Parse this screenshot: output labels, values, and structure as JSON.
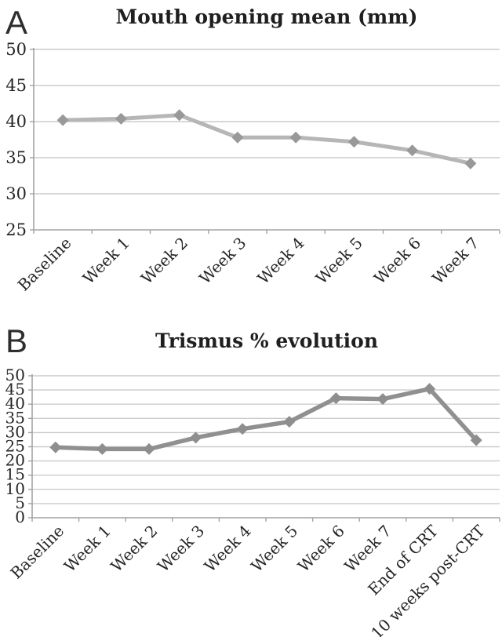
{
  "figure": {
    "background": "#ffffff",
    "text_color": "#262626",
    "gridline_color": "#cbcbcb",
    "axis_color": "#a3a3a3"
  },
  "chart_data": [
    {
      "type": "line",
      "panel_label": "A",
      "title": "Mouth opening mean (mm)",
      "categories": [
        "Baseline",
        "Week 1",
        "Week 2",
        "Week 3",
        "Week 4",
        "Week 5",
        "Week 6",
        "Week 7"
      ],
      "series": [
        {
          "name": "Mouth opening mean (mm)",
          "values": [
            40.2,
            40.4,
            40.9,
            37.8,
            37.8,
            37.2,
            36.0,
            34.2
          ]
        }
      ],
      "xlabel": "",
      "ylabel": "",
      "ylim": [
        25,
        50
      ],
      "ytick_step": 5,
      "yticks": [
        50,
        45,
        40,
        35,
        30,
        25
      ],
      "grid": true,
      "legend": "none",
      "marker": "diamond",
      "line_color": "#b6b6b6",
      "marker_color": "#999999"
    },
    {
      "type": "line",
      "panel_label": "B",
      "title": "Trismus % evolution",
      "categories": [
        "Baseline",
        "Week 1",
        "Week 2",
        "Week 3",
        "Week 4",
        "Week 5",
        "Week 6",
        "Week 7",
        "End of CRT",
        "10 weeks post-CRT"
      ],
      "series": [
        {
          "name": "Trismus %",
          "values": [
            24.8,
            24.2,
            24.2,
            28.2,
            31.3,
            33.8,
            42.1,
            41.8,
            45.4,
            27.3
          ]
        }
      ],
      "xlabel": "",
      "ylabel": "",
      "ylim": [
        0,
        50
      ],
      "ytick_step": 5,
      "yticks": [
        50,
        45,
        40,
        35,
        30,
        25,
        20,
        15,
        10,
        5,
        0
      ],
      "grid": true,
      "legend": "none",
      "marker": "diamond",
      "line_color": "#909090",
      "marker_color": "#8e8e8e"
    }
  ]
}
